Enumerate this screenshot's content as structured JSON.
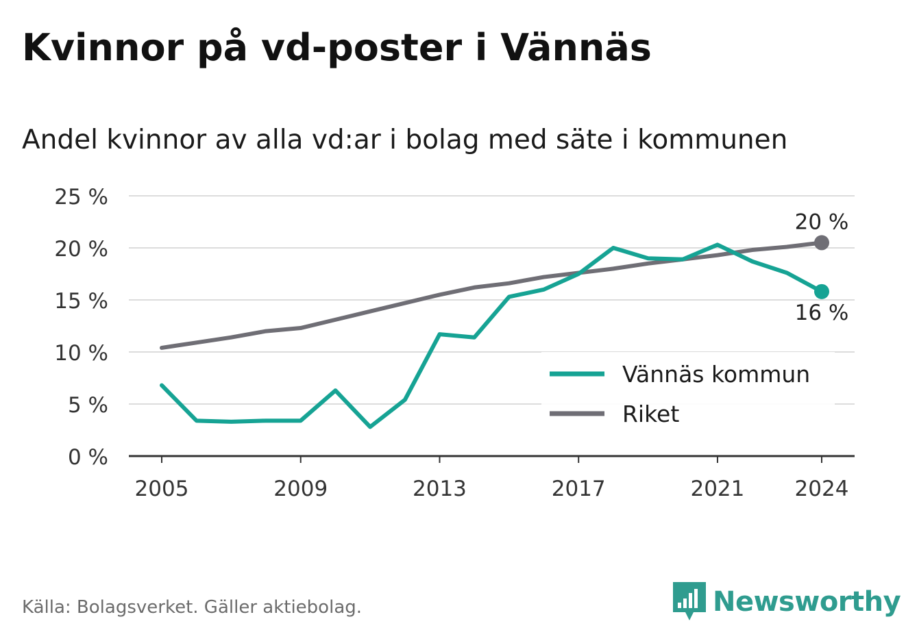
{
  "title": "Kvinnor på vd-poster i Vännäs",
  "subtitle": "Andel kvinnor av alla vd:ar i bolag med säte i kommunen",
  "source": "Källa: Bolagsverket. Gäller aktiebolag.",
  "brand": {
    "name": "Newsworthy",
    "icon": "newsworthy-logo-icon",
    "color": "#2f9c8f"
  },
  "chart_data": {
    "type": "line",
    "x": [
      2005,
      2006,
      2007,
      2008,
      2009,
      2010,
      2011,
      2012,
      2013,
      2014,
      2015,
      2016,
      2017,
      2018,
      2019,
      2020,
      2021,
      2022,
      2023,
      2024
    ],
    "x_ticks": [
      "2005",
      "2009",
      "2013",
      "2017",
      "2021",
      "2024"
    ],
    "y_ticks": [
      "0 %",
      "5 %",
      "10 %",
      "15 %",
      "20 %",
      "25 %"
    ],
    "ylim": [
      0,
      25
    ],
    "grid": true,
    "legend_position": "bottom-right",
    "series": [
      {
        "name": "Vännäs kommun",
        "color": "#16a394",
        "values": [
          6.8,
          3.4,
          3.3,
          3.4,
          3.4,
          6.3,
          2.8,
          5.4,
          11.7,
          11.4,
          15.3,
          16.0,
          17.5,
          20.0,
          19.0,
          18.9,
          20.3,
          18.7,
          17.6,
          15.8
        ],
        "end_label": "16 %"
      },
      {
        "name": "Riket",
        "color": "#6f6e75",
        "values": [
          10.4,
          10.9,
          11.4,
          12.0,
          12.3,
          13.1,
          13.9,
          14.7,
          15.5,
          16.2,
          16.6,
          17.2,
          17.6,
          18.0,
          18.5,
          18.9,
          19.3,
          19.8,
          20.1,
          20.5
        ],
        "end_label": "20 %"
      }
    ]
  }
}
